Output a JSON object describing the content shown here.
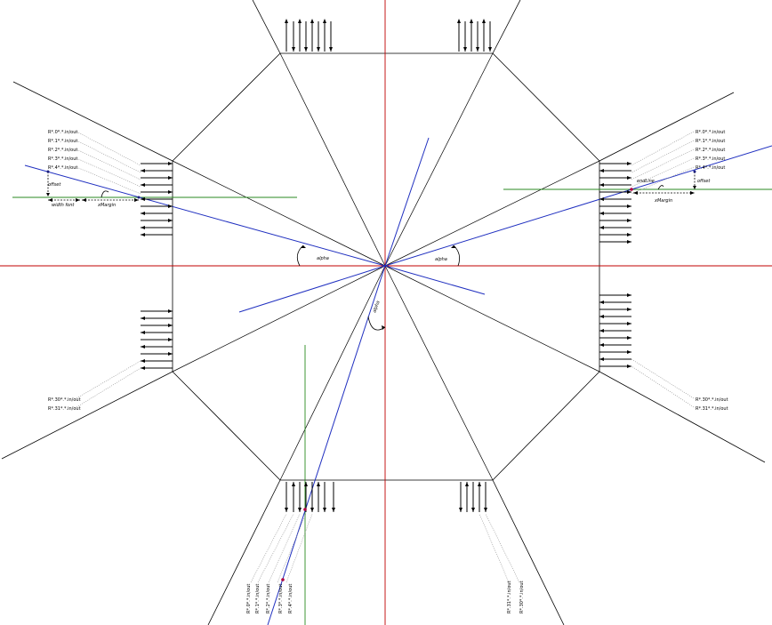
{
  "diagram": {
    "pin_labels_left": [
      "R*.0*.*.in/out",
      "R*.1*.*.in/out",
      "R*.2*.*.in/out",
      "R*.3*.*.in/out",
      "R*.4*.*.in/out"
    ],
    "pin_labels_left_bottom": [
      "R*.30*.*.in/out",
      "R*.31*.*.in/out"
    ],
    "pin_labels_right": [
      "R*.0*.*.in/out",
      "R*.1*.*.in/out",
      "R*.2*.*.in/out",
      "R*.3*.*.in/out",
      "R*.4*.*.in/out"
    ],
    "pin_labels_right_bottom": [
      "R*.30*.*.in/out",
      "R*.31*.*.in/out"
    ],
    "pin_labels_bottom_left": [
      "R*.0*.*.in/out",
      "R*.1*.*.in/out",
      "R*.2*.*.in/out",
      "R*.3*.*.in/out",
      "R*.4*.*.in/out"
    ],
    "pin_labels_bottom_right": [
      "R*.31*.*.in/out",
      "R*.30*.*.in/out"
    ],
    "annotations": {
      "offset": "offset",
      "width_font": "width font",
      "xmargin": "xMargin",
      "endline": "endLine",
      "alpha": "alpha"
    },
    "colors": {
      "axis": "#c00000",
      "ray": "#2030c0",
      "guide": "#2a8a20",
      "outline": "#000000",
      "leader": "#999999"
    }
  }
}
